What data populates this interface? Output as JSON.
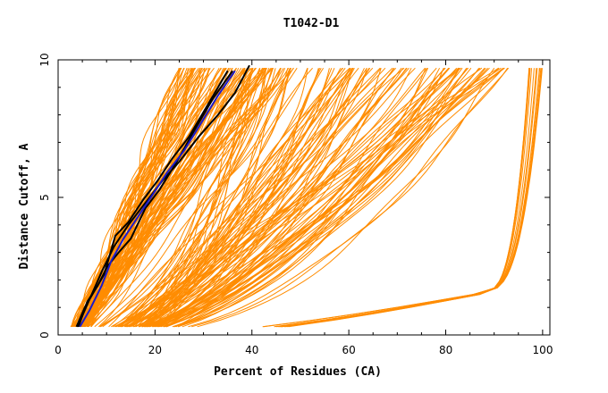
{
  "chart_data": {
    "type": "line",
    "title": "T1042-D1",
    "xlabel": "Percent of Residues (CA)",
    "ylabel": "Distance Cutoff, A",
    "xlim": [
      0,
      101.5
    ],
    "ylim": [
      0,
      10
    ],
    "xticks": [
      "0",
      "20",
      "40",
      "60",
      "80",
      "100"
    ],
    "yticks": [
      "0",
      "5",
      "10"
    ],
    "grid": false,
    "legend": "none",
    "colors": {
      "models": "#ff8c00",
      "highlight_black": "#000000",
      "highlight_blue": "#1a1acc"
    },
    "series": [
      {
        "color": "#000000",
        "x": [
          3.8,
          5.5,
          7.5,
          9.5,
          11.8,
          14.5,
          17.5,
          20.5,
          23.5,
          27,
          31,
          35
        ],
        "y": [
          0.3,
          1,
          1.6,
          2.2,
          3.6,
          4.1,
          4.9,
          5.6,
          6.4,
          7.2,
          8.4,
          9.6
        ]
      },
      {
        "color": "#000000",
        "x": [
          4.2,
          6,
          8.2,
          10.2,
          12.5,
          15,
          18,
          21,
          24.5,
          28,
          32,
          36
        ],
        "y": [
          0.3,
          1.2,
          1.8,
          2.5,
          3,
          3.5,
          4.6,
          5.3,
          6.3,
          7.4,
          8.6,
          9.6
        ]
      },
      {
        "color": "#000000",
        "x": [
          4,
          6.5,
          9,
          11.5,
          14.5,
          18,
          21.5,
          25,
          29,
          33,
          36.5,
          39.5
        ],
        "y": [
          0.3,
          1.3,
          2.3,
          3.2,
          4,
          4.8,
          5.6,
          6.3,
          7.2,
          8,
          8.8,
          9.8
        ]
      },
      {
        "color": "#1a1acc",
        "x": [
          4.5,
          6.5,
          9,
          11,
          13.5,
          16.5,
          19.5,
          22.5,
          26,
          29.5,
          33,
          36.5
        ],
        "y": [
          0.3,
          0.9,
          1.8,
          2.7,
          3.5,
          4.3,
          5.1,
          5.9,
          6.7,
          7.7,
          8.7,
          9.6
        ]
      }
    ]
  }
}
